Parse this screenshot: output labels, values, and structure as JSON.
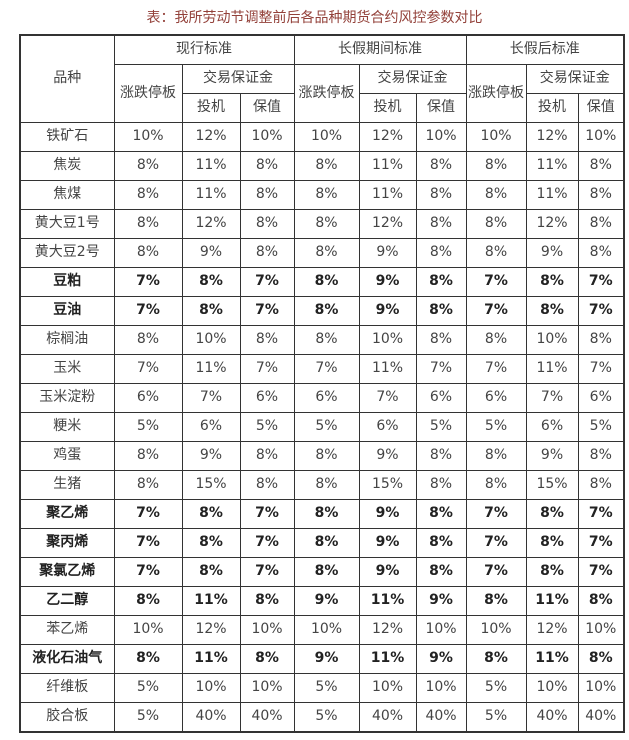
{
  "page": {
    "title": "表：我所劳动节调整前后各品种期货合约风控参数对比"
  },
  "colors": {
    "title_text": "#93413a",
    "table_border": "#333333",
    "body_text": "#444444",
    "bold_text": "#222222",
    "background": "#ffffff"
  },
  "table": {
    "corner_header": "品种",
    "groups": [
      {
        "label": "现行标准",
        "price_limit": "涨跌停板",
        "margin": "交易保证金",
        "speculation": "投机",
        "hedging": "保值"
      },
      {
        "label": "长假期间标准",
        "price_limit": "涨跌停板",
        "margin": "交易保证金",
        "speculation": "投机",
        "hedging": "保值"
      },
      {
        "label": "长假后标准",
        "price_limit": "涨跌停板",
        "margin": "交易保证金",
        "speculation": "投机",
        "hedging": "保值"
      }
    ],
    "rows": [
      {
        "name": "铁矿石",
        "bold": false,
        "values": [
          "10%",
          "12%",
          "10%",
          "10%",
          "12%",
          "10%",
          "10%",
          "12%",
          "10%"
        ]
      },
      {
        "name": "焦炭",
        "bold": false,
        "values": [
          "8%",
          "11%",
          "8%",
          "8%",
          "11%",
          "8%",
          "8%",
          "11%",
          "8%"
        ]
      },
      {
        "name": "焦煤",
        "bold": false,
        "values": [
          "8%",
          "11%",
          "8%",
          "8%",
          "11%",
          "8%",
          "8%",
          "11%",
          "8%"
        ]
      },
      {
        "name": "黄大豆1号",
        "bold": false,
        "values": [
          "8%",
          "12%",
          "8%",
          "8%",
          "12%",
          "8%",
          "8%",
          "12%",
          "8%"
        ]
      },
      {
        "name": "黄大豆2号",
        "bold": false,
        "values": [
          "8%",
          "9%",
          "8%",
          "8%",
          "9%",
          "8%",
          "8%",
          "9%",
          "8%"
        ]
      },
      {
        "name": "豆粕",
        "bold": true,
        "values": [
          "7%",
          "8%",
          "7%",
          "8%",
          "9%",
          "8%",
          "7%",
          "8%",
          "7%"
        ]
      },
      {
        "name": "豆油",
        "bold": true,
        "values": [
          "7%",
          "8%",
          "7%",
          "8%",
          "9%",
          "8%",
          "7%",
          "8%",
          "7%"
        ]
      },
      {
        "name": "棕榈油",
        "bold": false,
        "values": [
          "8%",
          "10%",
          "8%",
          "8%",
          "10%",
          "8%",
          "8%",
          "10%",
          "8%"
        ]
      },
      {
        "name": "玉米",
        "bold": false,
        "values": [
          "7%",
          "11%",
          "7%",
          "7%",
          "11%",
          "7%",
          "7%",
          "11%",
          "7%"
        ]
      },
      {
        "name": "玉米淀粉",
        "bold": false,
        "values": [
          "6%",
          "7%",
          "6%",
          "6%",
          "7%",
          "6%",
          "6%",
          "7%",
          "6%"
        ]
      },
      {
        "name": "粳米",
        "bold": false,
        "values": [
          "5%",
          "6%",
          "5%",
          "5%",
          "6%",
          "5%",
          "5%",
          "6%",
          "5%"
        ]
      },
      {
        "name": "鸡蛋",
        "bold": false,
        "values": [
          "8%",
          "9%",
          "8%",
          "8%",
          "9%",
          "8%",
          "8%",
          "9%",
          "8%"
        ]
      },
      {
        "name": "生猪",
        "bold": false,
        "values": [
          "8%",
          "15%",
          "8%",
          "8%",
          "15%",
          "8%",
          "8%",
          "15%",
          "8%"
        ]
      },
      {
        "name": "聚乙烯",
        "bold": true,
        "values": [
          "7%",
          "8%",
          "7%",
          "8%",
          "9%",
          "8%",
          "7%",
          "8%",
          "7%"
        ]
      },
      {
        "name": "聚丙烯",
        "bold": true,
        "values": [
          "7%",
          "8%",
          "7%",
          "8%",
          "9%",
          "8%",
          "7%",
          "8%",
          "7%"
        ]
      },
      {
        "name": "聚氯乙烯",
        "bold": true,
        "values": [
          "7%",
          "8%",
          "7%",
          "8%",
          "9%",
          "8%",
          "7%",
          "8%",
          "7%"
        ]
      },
      {
        "name": "乙二醇",
        "bold": true,
        "values": [
          "8%",
          "11%",
          "8%",
          "9%",
          "11%",
          "9%",
          "8%",
          "11%",
          "8%"
        ]
      },
      {
        "name": "苯乙烯",
        "bold": false,
        "values": [
          "10%",
          "12%",
          "10%",
          "10%",
          "12%",
          "10%",
          "10%",
          "12%",
          "10%"
        ]
      },
      {
        "name": "液化石油气",
        "bold": true,
        "values": [
          "8%",
          "11%",
          "8%",
          "9%",
          "11%",
          "9%",
          "8%",
          "11%",
          "8%"
        ]
      },
      {
        "name": "纤维板",
        "bold": false,
        "values": [
          "5%",
          "10%",
          "10%",
          "5%",
          "10%",
          "10%",
          "5%",
          "10%",
          "10%"
        ]
      },
      {
        "name": "胶合板",
        "bold": false,
        "values": [
          "5%",
          "40%",
          "40%",
          "5%",
          "40%",
          "40%",
          "5%",
          "40%",
          "40%"
        ]
      }
    ]
  }
}
